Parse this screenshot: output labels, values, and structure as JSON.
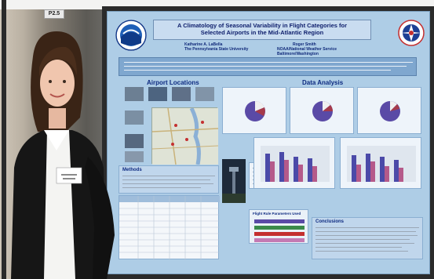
{
  "booth_tag": "P2.5",
  "poster": {
    "title_line1": "A Climatology of Seasonal Variability in Flight Categories for",
    "title_line2": "Selected Airports in the Mid-Atlantic Region",
    "author1": "Katharine A. LaBella",
    "affiliation1": "The Pennsylvania State University",
    "author2": "Roger Smith",
    "affiliation2": "NOAA/National Weather Service Baltimore/Washington",
    "section_airports": "Airport Locations",
    "section_data": "Data Analysis",
    "section_methods": "Methods",
    "section_conclusions": "Conclusions",
    "legend_title": "Flight Rule Parameters Used"
  },
  "colors": {
    "poster_bg": "#aecde6",
    "title_text": "#0d1d6b",
    "bar_primary": "#4b4aa8",
    "bar_secondary": "#b55a8a",
    "pie_purple": "#5a4aa6",
    "pie_red": "#a63a4a"
  }
}
